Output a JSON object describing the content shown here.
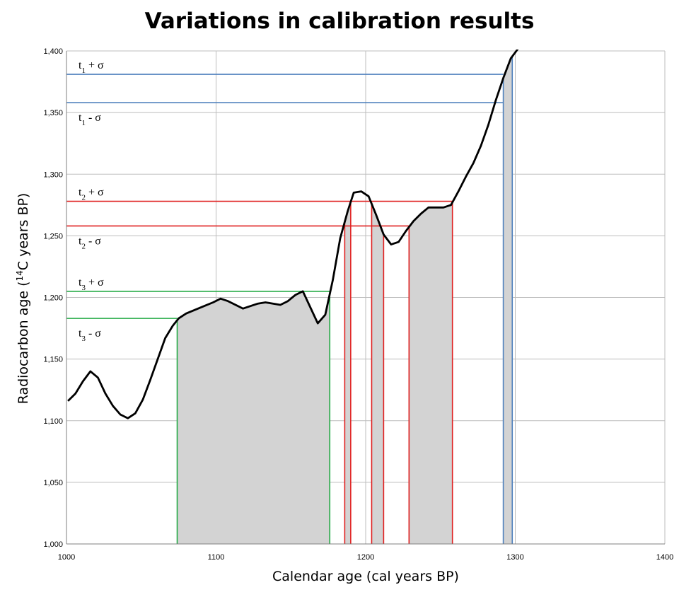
{
  "chart_data": {
    "type": "line",
    "title": "Variations in calibration results",
    "xlabel": "Calendar age (cal years BP)",
    "ylabel_parts": [
      "Radiocarbon age (",
      "14",
      "C years BP)"
    ],
    "xlim": [
      1000,
      1400
    ],
    "ylim": [
      1000,
      1400
    ],
    "x_ticks": [
      1000,
      1100,
      1200,
      1300,
      1400
    ],
    "x_tick_labels": [
      "1000",
      "1100",
      "1200",
      "1300",
      "1400"
    ],
    "y_ticks": [
      1000,
      1050,
      1100,
      1150,
      1200,
      1250,
      1300,
      1350,
      1400
    ],
    "y_tick_labels": [
      "1,000",
      "1,050",
      "1,100",
      "1,150",
      "1,200",
      "1,250",
      "1,300",
      "1,350",
      "1,400"
    ],
    "grid": true,
    "curve": {
      "color": "#000000",
      "x": [
        1001,
        1006,
        1011,
        1016,
        1021,
        1026,
        1031,
        1036,
        1041,
        1046,
        1051,
        1056,
        1061,
        1066,
        1071,
        1075,
        1080,
        1086,
        1092,
        1098,
        1103,
        1108,
        1113,
        1118,
        1123,
        1128,
        1133,
        1138,
        1143,
        1148,
        1153,
        1158,
        1163,
        1168,
        1173,
        1178,
        1183,
        1188,
        1192,
        1197,
        1202,
        1207,
        1212,
        1217,
        1222,
        1227,
        1232,
        1237,
        1242,
        1247,
        1252,
        1257,
        1262,
        1267,
        1272,
        1277,
        1282,
        1287,
        1292,
        1297,
        1302
      ],
      "y": [
        1116,
        1122,
        1132,
        1140,
        1135,
        1122,
        1112,
        1105,
        1102,
        1106,
        1117,
        1133,
        1150,
        1167,
        1177,
        1183,
        1187,
        1190,
        1193,
        1196,
        1199,
        1197,
        1194,
        1191,
        1193,
        1195,
        1196,
        1195,
        1194,
        1197,
        1202,
        1205,
        1192,
        1179,
        1186,
        1214,
        1248,
        1270,
        1285,
        1286,
        1282,
        1267,
        1251,
        1243,
        1245,
        1254,
        1262,
        1268,
        1273,
        1273,
        1273,
        1275,
        1286,
        1298,
        1309,
        1323,
        1340,
        1360,
        1378,
        1394,
        1402
      ]
    },
    "shading_color": "#d3d3d3",
    "bands": [
      {
        "label": "t",
        "sub": "1",
        "suffix": " + σ",
        "y": 1381,
        "color": "#4f81bd"
      },
      {
        "label": "t",
        "sub": "1",
        "suffix": " - σ",
        "y": 1358,
        "color": "#4f81bd"
      },
      {
        "label": "t",
        "sub": "2",
        "suffix": " + σ",
        "y": 1278,
        "color": "#e02020"
      },
      {
        "label": "t",
        "sub": "2",
        "suffix": " - σ",
        "y": 1258,
        "color": "#e02020"
      },
      {
        "label": "t",
        "sub": "3",
        "suffix": " + σ",
        "y": 1205,
        "color": "#22aa44"
      },
      {
        "label": "t",
        "sub": "3",
        "suffix": " - σ",
        "y": 1183,
        "color": "#22aa44"
      }
    ],
    "intervals": [
      {
        "x_start": 1074,
        "x_end": 1176,
        "color": "#22aa44"
      },
      {
        "x_start": 1186,
        "x_end": 1190,
        "color": "#e02020"
      },
      {
        "x_start": 1204,
        "x_end": 1212,
        "color": "#e02020"
      },
      {
        "x_start": 1229,
        "x_end": 1258,
        "color": "#e02020"
      },
      {
        "x_start": 1292,
        "x_end": 1298,
        "color": "#4f81bd"
      }
    ]
  }
}
